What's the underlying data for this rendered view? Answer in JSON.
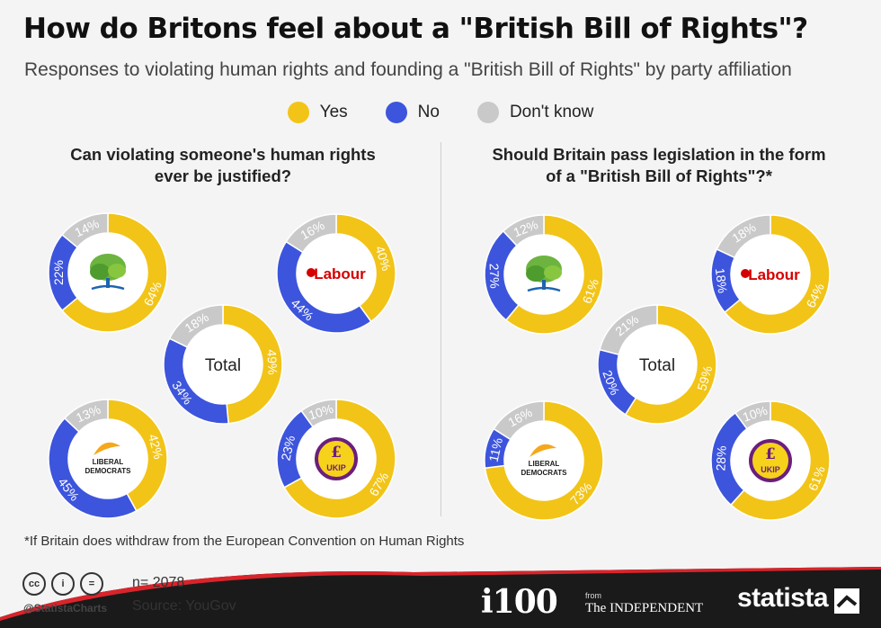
{
  "title": "How do Britons feel about a \"British Bill of Rights\"?",
  "subtitle": "Responses to violating human rights and founding a \"British Bill of Rights\" by party affiliation",
  "legend": [
    {
      "label": "Yes",
      "color": "#f2c418"
    },
    {
      "label": "No",
      "color": "#3d55dc"
    },
    {
      "label": "Don't know",
      "color": "#c9c9c9"
    }
  ],
  "footnote": "*If Britain does withdraw from the European Convention on Human Rights",
  "footer": {
    "n": "n= 2078",
    "source": "Source: YouGov",
    "handle": "@StatistaCharts",
    "brand_i100": "i100",
    "brand_from": "from",
    "brand_independent": "The INDEPENDENT",
    "brand_statista": "statista"
  },
  "chart_data": [
    {
      "type": "pie",
      "title": "Can violating someone's human rights ever be justified?",
      "donuts": [
        {
          "group": "Conservative",
          "logo": "tree-icon",
          "slices": [
            {
              "label": "Yes",
              "value": 64
            },
            {
              "label": "No",
              "value": 22
            },
            {
              "label": "Don't know",
              "value": 14
            }
          ]
        },
        {
          "group": "Labour",
          "logo": "Labour",
          "slices": [
            {
              "label": "Yes",
              "value": 40
            },
            {
              "label": "No",
              "value": 44
            },
            {
              "label": "Don't know",
              "value": 16
            }
          ]
        },
        {
          "group": "Total",
          "logo": "Total",
          "slices": [
            {
              "label": "Yes",
              "value": 49
            },
            {
              "label": "No",
              "value": 34
            },
            {
              "label": "Don't know",
              "value": 18
            }
          ]
        },
        {
          "group": "Liberal Democrats",
          "logo": "LIBERAL DEMOCRATS",
          "slices": [
            {
              "label": "Yes",
              "value": 42
            },
            {
              "label": "No",
              "value": 45
            },
            {
              "label": "Don't know",
              "value": 13
            }
          ]
        },
        {
          "group": "UKIP",
          "logo": "UKIP",
          "slices": [
            {
              "label": "Yes",
              "value": 67
            },
            {
              "label": "No",
              "value": 23
            },
            {
              "label": "Don't know",
              "value": 10
            }
          ]
        }
      ]
    },
    {
      "type": "pie",
      "title": "Should Britain pass legislation in the form of a \"British Bill of Rights\"?*",
      "donuts": [
        {
          "group": "Conservative",
          "logo": "tree-icon",
          "slices": [
            {
              "label": "Yes",
              "value": 61
            },
            {
              "label": "No",
              "value": 27
            },
            {
              "label": "Don't know",
              "value": 12
            }
          ]
        },
        {
          "group": "Labour",
          "logo": "Labour",
          "slices": [
            {
              "label": "Yes",
              "value": 64
            },
            {
              "label": "No",
              "value": 18
            },
            {
              "label": "Don't know",
              "value": 18
            }
          ]
        },
        {
          "group": "Total",
          "logo": "Total",
          "slices": [
            {
              "label": "Yes",
              "value": 59
            },
            {
              "label": "No",
              "value": 20
            },
            {
              "label": "Don't know",
              "value": 21
            }
          ]
        },
        {
          "group": "Liberal Democrats",
          "logo": "LIBERAL DEMOCRATS",
          "slices": [
            {
              "label": "Yes",
              "value": 73
            },
            {
              "label": "No",
              "value": 11
            },
            {
              "label": "Don't know",
              "value": 16
            }
          ]
        },
        {
          "group": "UKIP",
          "logo": "UKIP",
          "slices": [
            {
              "label": "Yes",
              "value": 61
            },
            {
              "label": "No",
              "value": 28
            },
            {
              "label": "Don't know",
              "value": 10
            }
          ]
        }
      ]
    }
  ]
}
